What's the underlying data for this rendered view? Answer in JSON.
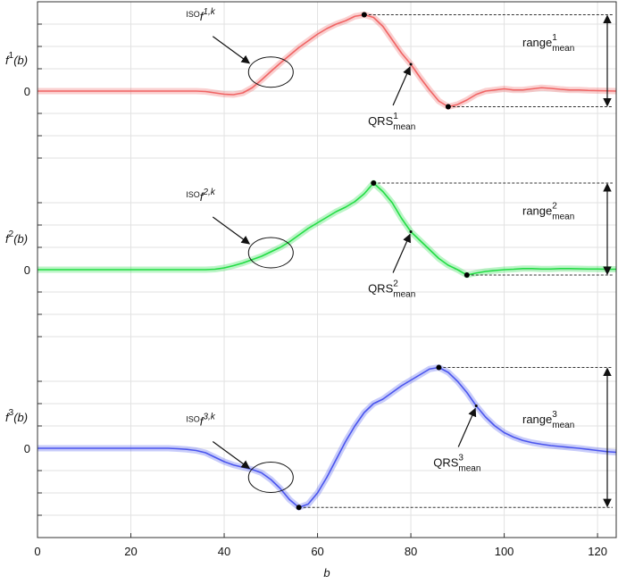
{
  "chart_data": [
    {
      "type": "line",
      "color": "#f06464",
      "xlim": [
        0,
        124
      ],
      "ylim": [
        -4,
        4
      ],
      "yticks": [
        0
      ],
      "ygrid": [
        -3,
        -2,
        -1,
        1,
        2,
        3
      ],
      "ylabel": {
        "base": "f",
        "sup": "1",
        "arg": "(b)"
      },
      "x": [
        0,
        2,
        4,
        6,
        8,
        10,
        12,
        14,
        16,
        18,
        20,
        22,
        24,
        26,
        28,
        30,
        32,
        34,
        36,
        38,
        40,
        42,
        44,
        46,
        48,
        50,
        52,
        54,
        56,
        58,
        60,
        62,
        64,
        66,
        68,
        70,
        72,
        74,
        76,
        78,
        80,
        82,
        84,
        86,
        88,
        90,
        92,
        94,
        96,
        98,
        100,
        102,
        104,
        106,
        108,
        110,
        112,
        114,
        116,
        118,
        120,
        122,
        124
      ],
      "values": [
        0,
        0,
        0,
        0,
        0,
        0,
        0,
        0,
        0,
        0,
        0,
        0,
        0,
        0,
        0,
        0,
        0,
        0,
        -0.02,
        -0.08,
        -0.14,
        -0.16,
        -0.08,
        0.15,
        0.5,
        0.88,
        1.25,
        1.6,
        1.95,
        2.25,
        2.55,
        2.8,
        3.0,
        3.15,
        3.35,
        3.42,
        3.3,
        2.9,
        2.3,
        1.7,
        1.2,
        0.6,
        0.05,
        -0.45,
        -0.7,
        -0.6,
        -0.4,
        -0.15,
        0.0,
        0.05,
        0.1,
        0.05,
        0.05,
        0.1,
        0.15,
        0.12,
        0.08,
        0.05,
        0.05,
        0.03,
        0.02,
        0.01,
        0.0
      ],
      "peak": [
        70,
        3.42
      ],
      "trough": [
        88,
        -0.7
      ],
      "qrs": [
        80,
        1.2
      ],
      "iso": [
        50,
        0.85
      ],
      "iso_label": {
        "pre": "ISO",
        "base": "f",
        "sup": "1,k"
      },
      "qrs_label": {
        "base": "QRS",
        "sup": "1",
        "sub": "mean"
      },
      "range_label": {
        "base": "range",
        "sup": "1",
        "sub": "mean"
      }
    },
    {
      "type": "line",
      "color": "#22dd44",
      "xlim": [
        0,
        124
      ],
      "ylim": [
        -4,
        4
      ],
      "yticks": [
        0
      ],
      "ygrid": [
        -3,
        -2,
        -1,
        1,
        2,
        3
      ],
      "ylabel": {
        "base": "f",
        "sup": "2",
        "arg": "(b)"
      },
      "x": [
        0,
        2,
        4,
        6,
        8,
        10,
        12,
        14,
        16,
        18,
        20,
        22,
        24,
        26,
        28,
        30,
        32,
        34,
        36,
        38,
        40,
        42,
        44,
        46,
        48,
        50,
        52,
        54,
        56,
        58,
        60,
        62,
        64,
        66,
        68,
        70,
        72,
        74,
        76,
        78,
        80,
        82,
        84,
        86,
        88,
        90,
        92,
        94,
        96,
        98,
        100,
        102,
        104,
        106,
        108,
        110,
        112,
        114,
        116,
        118,
        120,
        122,
        124
      ],
      "values": [
        0,
        0,
        0,
        0,
        0,
        0,
        0,
        0,
        0,
        0,
        0,
        0,
        0,
        0,
        0,
        0,
        0,
        0,
        0,
        0.02,
        0.08,
        0.18,
        0.3,
        0.45,
        0.6,
        0.8,
        1.0,
        1.25,
        1.55,
        1.85,
        2.1,
        2.35,
        2.6,
        2.8,
        3.05,
        3.4,
        3.88,
        3.5,
        3.0,
        2.3,
        1.7,
        1.3,
        0.9,
        0.5,
        0.2,
        0.0,
        -0.24,
        -0.15,
        -0.08,
        -0.04,
        0.0,
        0.02,
        0.05,
        0.05,
        0.03,
        0.03,
        0.05,
        0.05,
        0.04,
        0.03,
        0.03,
        0.02,
        0.02
      ],
      "peak": [
        72,
        3.88
      ],
      "trough": [
        92,
        -0.24
      ],
      "qrs": [
        80,
        1.7
      ],
      "iso": [
        50,
        0.76
      ],
      "iso_label": {
        "pre": "ISO",
        "base": "f",
        "sup": "2,k"
      },
      "qrs_label": {
        "base": "QRS",
        "sup": "2",
        "sub": "mean"
      },
      "range_label": {
        "base": "range",
        "sup": "2",
        "sub": "mean"
      }
    },
    {
      "type": "line",
      "color": "#4a55ee",
      "xlim": [
        0,
        124
      ],
      "ylim": [
        -4,
        4
      ],
      "yticks": [
        0
      ],
      "ygrid": [
        -3,
        -2,
        -1,
        1,
        2,
        3
      ],
      "ylabel": {
        "base": "f",
        "sup": "3",
        "arg": "(b)"
      },
      "xticks": [
        0,
        20,
        40,
        60,
        80,
        100,
        120
      ],
      "xlabel": "b",
      "x": [
        0,
        2,
        4,
        6,
        8,
        10,
        12,
        14,
        16,
        18,
        20,
        22,
        24,
        26,
        28,
        30,
        32,
        34,
        36,
        38,
        40,
        42,
        44,
        46,
        48,
        50,
        52,
        54,
        56,
        58,
        60,
        62,
        64,
        66,
        68,
        70,
        72,
        74,
        76,
        78,
        80,
        82,
        84,
        86,
        88,
        90,
        92,
        94,
        96,
        98,
        100,
        102,
        104,
        106,
        108,
        110,
        112,
        114,
        116,
        118,
        120,
        122,
        124
      ],
      "values": [
        0,
        0,
        0,
        0,
        0,
        0,
        0,
        0,
        0,
        0,
        0,
        0,
        0,
        0,
        0,
        -0.02,
        -0.05,
        -0.1,
        -0.2,
        -0.4,
        -0.6,
        -0.75,
        -0.85,
        -0.95,
        -1.1,
        -1.4,
        -1.8,
        -2.3,
        -2.65,
        -2.5,
        -2.0,
        -1.3,
        -0.5,
        0.3,
        1.0,
        1.6,
        2.0,
        2.2,
        2.5,
        2.8,
        3.05,
        3.3,
        3.55,
        3.62,
        3.4,
        3.0,
        2.5,
        1.9,
        1.4,
        1.0,
        0.7,
        0.5,
        0.35,
        0.25,
        0.18,
        0.12,
        0.08,
        0.04,
        0.0,
        -0.05,
        -0.1,
        -0.15,
        -0.18
      ],
      "peak": [
        86,
        3.62
      ],
      "trough": [
        56,
        -2.65
      ],
      "qrs": [
        94,
        1.9
      ],
      "iso": [
        50,
        -1.3
      ],
      "iso_label": {
        "pre": "ISO",
        "base": "f",
        "sup": "3,k"
      },
      "qrs_label": {
        "base": "QRS",
        "sup": "3",
        "sub": "mean"
      },
      "range_label": {
        "base": "range",
        "sup": "3",
        "sub": "mean"
      }
    }
  ]
}
